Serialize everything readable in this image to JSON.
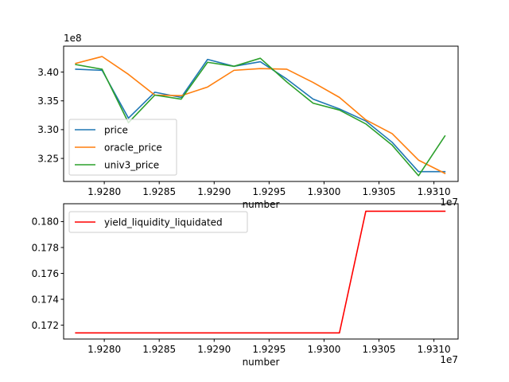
{
  "chart_data": [
    {
      "type": "line",
      "xlabel": "number",
      "ylabel": "",
      "x_offset_label": "1e7",
      "y_offset_label": "1e8",
      "x_scale": 10000000,
      "y_scale": 100000000,
      "xlim": [
        19276300,
        19312200
      ],
      "ylim": [
        321000000,
        344500000
      ],
      "xticks": [
        19280000,
        19285000,
        19290000,
        19295000,
        19300000,
        19305000,
        19310000
      ],
      "xtick_labels": [
        "1.9280",
        "1.9285",
        "1.9290",
        "1.9295",
        "1.9300",
        "1.9305",
        "1.9310"
      ],
      "yticks": [
        325000000,
        330000000,
        335000000,
        340000000
      ],
      "ytick_labels": [
        "3.25",
        "3.30",
        "3.35",
        "3.40"
      ],
      "legend_position": "lower-left",
      "x": [
        19277400,
        19279800,
        19282200,
        19284600,
        19287000,
        19289400,
        19291800,
        19294200,
        19296600,
        19299000,
        19301400,
        19303800,
        19306200,
        19308600,
        19311000
      ],
      "series": [
        {
          "name": "price",
          "color": "#1f77b4",
          "values": [
            340500000,
            340300000,
            332000000,
            336500000,
            335600000,
            342200000,
            341000000,
            341800000,
            338800000,
            335300000,
            333600000,
            331500000,
            327800000,
            322700000,
            322700000
          ]
        },
        {
          "name": "oracle_price",
          "color": "#ff7f0e",
          "values": [
            341500000,
            342700000,
            339600000,
            336000000,
            335900000,
            337400000,
            340300000,
            340600000,
            340500000,
            338200000,
            335600000,
            331700000,
            329300000,
            324700000,
            322400000
          ]
        },
        {
          "name": "univ3_price",
          "color": "#2ca02c",
          "values": [
            341300000,
            340500000,
            331200000,
            336000000,
            335300000,
            341700000,
            341000000,
            342400000,
            338300000,
            334600000,
            333400000,
            331000000,
            327300000,
            322000000,
            328900000
          ]
        }
      ]
    },
    {
      "type": "line",
      "xlabel": "number",
      "ylabel": "",
      "x_offset_label": "1e7",
      "x_scale": 10000000,
      "xlim": [
        19276300,
        19312200
      ],
      "ylim": [
        0.17093,
        0.18138
      ],
      "xticks": [
        19280000,
        19285000,
        19290000,
        19295000,
        19300000,
        19305000,
        19310000
      ],
      "xtick_labels": [
        "1.9280",
        "1.9285",
        "1.9290",
        "1.9295",
        "1.9300",
        "1.9305",
        "1.9310"
      ],
      "yticks": [
        0.172,
        0.174,
        0.176,
        0.178,
        0.18
      ],
      "ytick_labels": [
        "0.172",
        "0.174",
        "0.176",
        "0.178",
        "0.180"
      ],
      "legend_position": "upper-left",
      "x": [
        19277400,
        19279800,
        19282200,
        19284600,
        19287000,
        19289400,
        19291800,
        19294200,
        19296600,
        19299000,
        19301400,
        19303800,
        19306200,
        19308600,
        19311000
      ],
      "series": [
        {
          "name": "yield_liquidity_liquidated",
          "color": "#ff0000",
          "values": [
            0.1714,
            0.1714,
            0.1714,
            0.1714,
            0.1714,
            0.1714,
            0.1714,
            0.1714,
            0.1714,
            0.1714,
            0.1714,
            0.1808,
            0.1808,
            0.1808,
            0.1808
          ]
        }
      ]
    }
  ]
}
